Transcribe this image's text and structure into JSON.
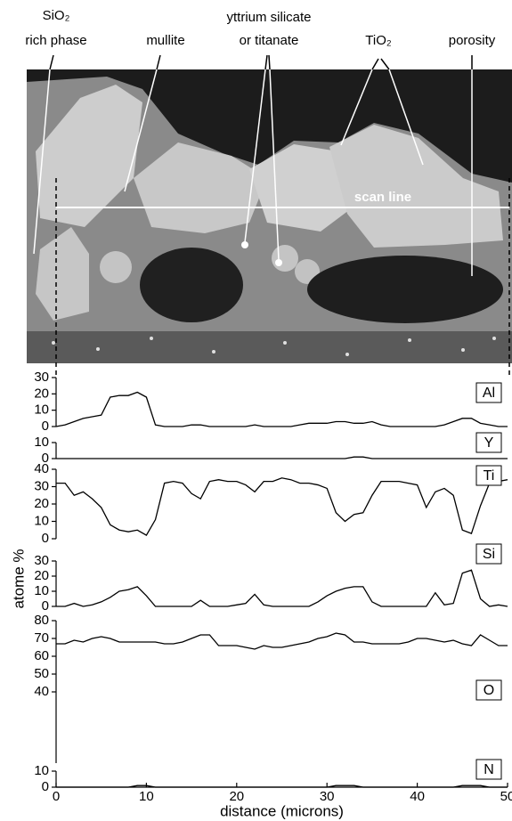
{
  "image": {
    "labels": {
      "sio2": [
        "SiO₂",
        "rich phase"
      ],
      "mullite": "mullite",
      "yttrium": [
        "yttrium silicate",
        "or titanate"
      ],
      "tio2": "TiO₂",
      "porosity": "porosity",
      "scan_line": "scan line"
    }
  },
  "chart_data": [
    {
      "type": "line",
      "ylim": [
        0,
        30
      ],
      "yticks": [
        0,
        10,
        20,
        30
      ],
      "xlim": [
        0,
        50
      ],
      "x": [
        0,
        1,
        2,
        3,
        4,
        5,
        6,
        7,
        8,
        9,
        10,
        11,
        12,
        13,
        14,
        15,
        16,
        17,
        18,
        19,
        20,
        21,
        22,
        23,
        24,
        25,
        26,
        27,
        28,
        29,
        30,
        31,
        32,
        33,
        34,
        35,
        36,
        37,
        38,
        39,
        40,
        41,
        42,
        43,
        44,
        45,
        46,
        47,
        48,
        49,
        50
      ],
      "series": [
        {
          "name": "Al",
          "color": "#000000",
          "values": [
            0,
            1,
            3,
            5,
            6,
            7,
            18,
            19,
            19,
            21,
            18,
            1,
            0,
            0,
            0,
            1,
            1,
            0,
            0,
            0,
            0,
            0,
            1,
            0,
            0,
            0,
            0,
            1,
            2,
            2,
            2,
            3,
            3,
            2,
            2,
            3,
            1,
            0,
            0,
            0,
            0,
            0,
            0,
            1,
            3,
            5,
            5,
            2,
            1,
            0,
            0
          ]
        }
      ]
    },
    {
      "type": "line",
      "ylim": [
        0,
        10
      ],
      "yticks": [
        0,
        10
      ],
      "xlim": [
        0,
        50
      ],
      "x": [
        0,
        1,
        2,
        3,
        4,
        5,
        6,
        7,
        8,
        9,
        10,
        11,
        12,
        13,
        14,
        15,
        16,
        17,
        18,
        19,
        20,
        21,
        22,
        23,
        24,
        25,
        26,
        27,
        28,
        29,
        30,
        31,
        32,
        33,
        34,
        35,
        36,
        37,
        38,
        39,
        40,
        41,
        42,
        43,
        44,
        45,
        46,
        47,
        48,
        49,
        50
      ],
      "series": [
        {
          "name": "Y",
          "color": "#000000",
          "values": [
            0,
            0,
            0,
            0,
            0,
            0,
            0,
            0,
            0,
            0,
            0,
            0,
            0,
            0,
            0,
            0,
            0,
            0,
            0,
            0,
            0,
            0,
            0,
            0,
            0,
            0,
            0,
            0,
            0,
            0,
            0,
            0,
            0,
            1,
            1,
            0,
            0,
            0,
            0,
            0,
            0,
            0,
            0,
            0,
            0,
            0,
            0,
            0,
            0,
            0,
            0
          ]
        }
      ]
    },
    {
      "type": "line",
      "ylim": [
        0,
        40
      ],
      "yticks": [
        0,
        10,
        20,
        30,
        40
      ],
      "xlim": [
        0,
        50
      ],
      "ylabel": "atome %",
      "x": [
        0,
        1,
        2,
        3,
        4,
        5,
        6,
        7,
        8,
        9,
        10,
        11,
        12,
        13,
        14,
        15,
        16,
        17,
        18,
        19,
        20,
        21,
        22,
        23,
        24,
        25,
        26,
        27,
        28,
        29,
        30,
        31,
        32,
        33,
        34,
        35,
        36,
        37,
        38,
        39,
        40,
        41,
        42,
        43,
        44,
        45,
        46,
        47,
        48,
        49,
        50
      ],
      "series": [
        {
          "name": "Ti",
          "color": "#000000",
          "values": [
            32,
            32,
            25,
            27,
            23,
            18,
            8,
            5,
            4,
            5,
            2,
            11,
            32,
            33,
            32,
            26,
            23,
            33,
            34,
            33,
            33,
            31,
            27,
            33,
            33,
            35,
            34,
            32,
            32,
            31,
            29,
            15,
            10,
            14,
            15,
            25,
            33,
            33,
            33,
            32,
            31,
            18,
            27,
            29,
            25,
            5,
            3,
            19,
            32,
            33,
            34
          ]
        }
      ]
    },
    {
      "type": "line",
      "ylim": [
        0,
        30
      ],
      "yticks": [
        0,
        10,
        20,
        30
      ],
      "xlim": [
        0,
        50
      ],
      "x": [
        0,
        1,
        2,
        3,
        4,
        5,
        6,
        7,
        8,
        9,
        10,
        11,
        12,
        13,
        14,
        15,
        16,
        17,
        18,
        19,
        20,
        21,
        22,
        23,
        24,
        25,
        26,
        27,
        28,
        29,
        30,
        31,
        32,
        33,
        34,
        35,
        36,
        37,
        38,
        39,
        40,
        41,
        42,
        43,
        44,
        45,
        46,
        47,
        48,
        49,
        50
      ],
      "series": [
        {
          "name": "Si",
          "color": "#000000",
          "values": [
            0,
            0,
            2,
            0,
            1,
            3,
            6,
            10,
            11,
            13,
            7,
            0,
            0,
            0,
            0,
            0,
            4,
            0,
            0,
            0,
            1,
            2,
            8,
            1,
            0,
            0,
            0,
            0,
            0,
            3,
            7,
            10,
            12,
            13,
            13,
            3,
            0,
            0,
            0,
            0,
            0,
            0,
            9,
            1,
            2,
            22,
            24,
            5,
            0,
            1,
            0
          ]
        }
      ]
    },
    {
      "type": "line",
      "ylim": [
        0,
        80
      ],
      "yticks": [
        40,
        50,
        60,
        70,
        80
      ],
      "xlim": [
        0,
        50
      ],
      "x": [
        0,
        1,
        2,
        3,
        4,
        5,
        6,
        7,
        8,
        9,
        10,
        11,
        12,
        13,
        14,
        15,
        16,
        17,
        18,
        19,
        20,
        21,
        22,
        23,
        24,
        25,
        26,
        27,
        28,
        29,
        30,
        31,
        32,
        33,
        34,
        35,
        36,
        37,
        38,
        39,
        40,
        41,
        42,
        43,
        44,
        45,
        46,
        47,
        48,
        49,
        50
      ],
      "series": [
        {
          "name": "O",
          "color": "#000000",
          "values": [
            67,
            67,
            69,
            68,
            70,
            71,
            70,
            68,
            68,
            68,
            68,
            68,
            67,
            67,
            68,
            70,
            72,
            72,
            66,
            66,
            66,
            65,
            64,
            66,
            65,
            65,
            66,
            67,
            68,
            70,
            71,
            73,
            72,
            68,
            68,
            67,
            67,
            67,
            67,
            68,
            70,
            70,
            69,
            68,
            69,
            67,
            66,
            72,
            69,
            66,
            66
          ]
        }
      ]
    },
    {
      "type": "line",
      "ylim": [
        0,
        10
      ],
      "yticks": [
        0,
        10
      ],
      "xlim": [
        0,
        50
      ],
      "xticks": [
        0,
        10,
        20,
        30,
        40,
        50
      ],
      "xlabel": "distance (microns)",
      "x": [
        0,
        1,
        2,
        3,
        4,
        5,
        6,
        7,
        8,
        9,
        10,
        11,
        12,
        13,
        14,
        15,
        16,
        17,
        18,
        19,
        20,
        21,
        22,
        23,
        24,
        25,
        26,
        27,
        28,
        29,
        30,
        31,
        32,
        33,
        34,
        35,
        36,
        37,
        38,
        39,
        40,
        41,
        42,
        43,
        44,
        45,
        46,
        47,
        48,
        49,
        50
      ],
      "series": [
        {
          "name": "N",
          "color": "#000000",
          "values": [
            0,
            0,
            0,
            0,
            0,
            0,
            0,
            0,
            0,
            1,
            1,
            0,
            0,
            0,
            0,
            0,
            0,
            0,
            0,
            0,
            0,
            0,
            0,
            0,
            0,
            0,
            0,
            0,
            0,
            0,
            0,
            1,
            1,
            1,
            0,
            0,
            0,
            0,
            0,
            0,
            0,
            0,
            0,
            0,
            0,
            1,
            1,
            1,
            0,
            0,
            0
          ]
        }
      ]
    }
  ]
}
